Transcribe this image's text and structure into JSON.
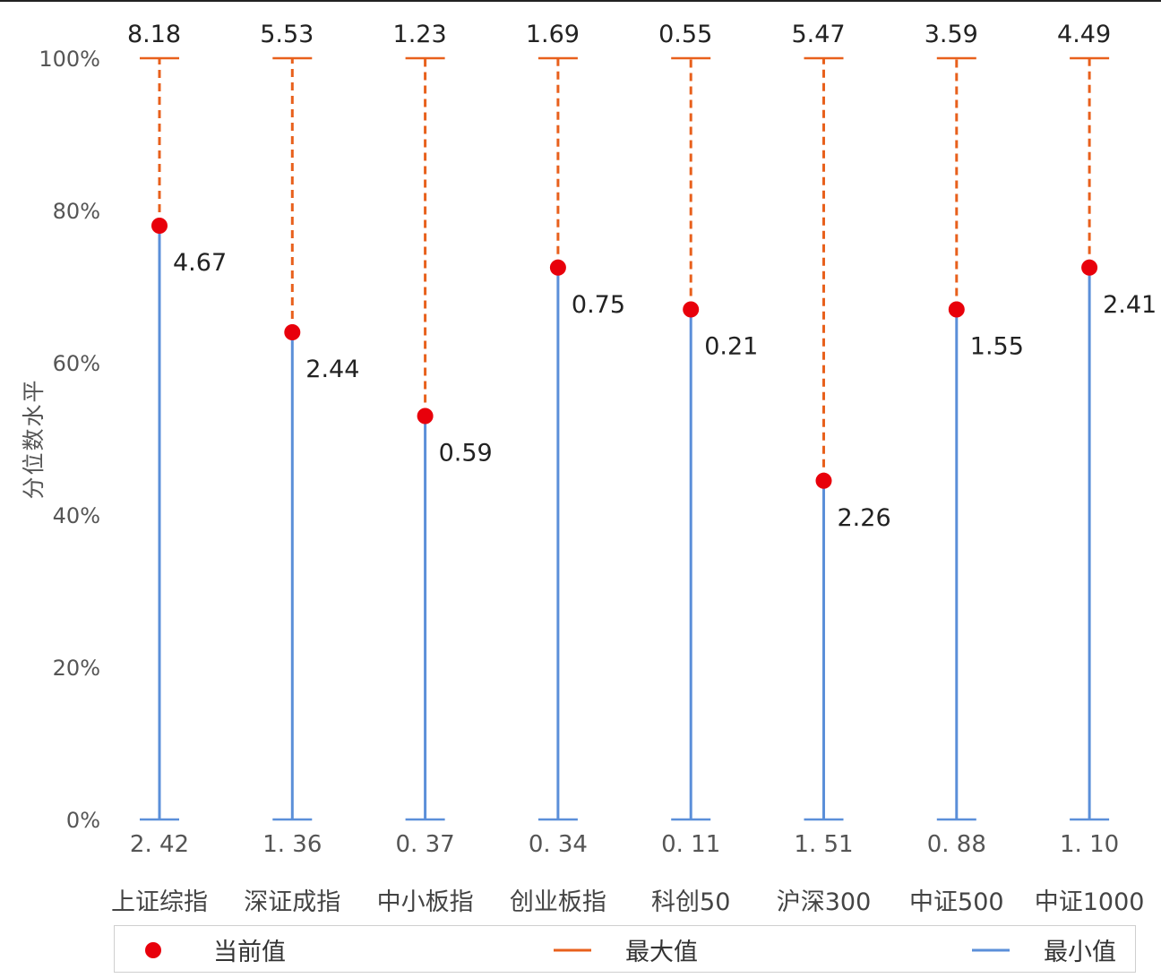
{
  "chart_data": {
    "type": "range-dot",
    "ylabel": "分位数水平",
    "yticks": [
      "0%",
      "20%",
      "40%",
      "60%",
      "80%",
      "100%"
    ],
    "ylim": [
      0,
      100
    ],
    "categories": [
      "上证综指",
      "深证成指",
      "中小板指",
      "创业板指",
      "科创50",
      "沪深300",
      "中证500",
      "中证1000"
    ],
    "current_percentile": [
      78,
      64,
      53,
      72.5,
      67,
      44.5,
      67,
      72.5
    ],
    "current_value_labels": [
      "4.67",
      "2.44",
      "0.59",
      "0.75",
      "0.21",
      "2.26",
      "1.55",
      "2.41"
    ],
    "max_value_labels": [
      "8.18",
      "5.53",
      "1.23",
      "1.69",
      "0.55",
      "5.47",
      "3.59",
      "4.49"
    ],
    "min_value_labels": [
      "2. 42",
      "1. 36",
      "0. 37",
      "0. 34",
      "0. 11",
      "1. 51",
      "0. 88",
      "1. 10"
    ],
    "legend": [
      {
        "name": "当前值",
        "marker": "dot",
        "color": "#e8000b"
      },
      {
        "name": "最大值",
        "marker": "line",
        "color": "#e8601c"
      },
      {
        "name": "最小值",
        "marker": "line",
        "color": "#5b8fd9"
      }
    ],
    "legend_position": "bottom",
    "grid": false
  },
  "colors": {
    "current": "#e8000b",
    "max_line": "#e8601c",
    "min_line": "#5b8fd9",
    "axis_text": "#555555",
    "label_text": "#222222"
  }
}
